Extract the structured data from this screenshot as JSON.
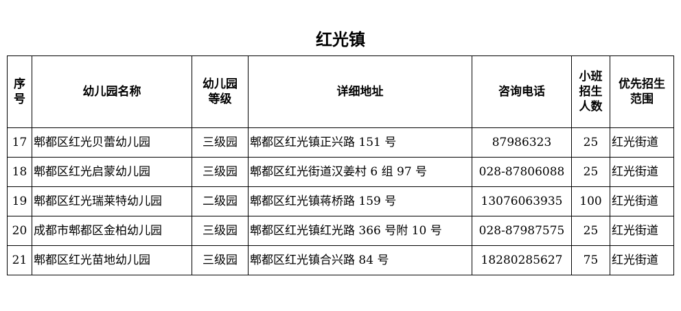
{
  "title": "红光镇",
  "headers": [
    "序\n号",
    "幼儿园名称",
    "幼儿园\n等级",
    "详细地址",
    "咨询电话",
    "小班\n招生\n人数",
    "优先招生\n范围"
  ],
  "rows": [
    [
      "17",
      "郫都区红光贝蕾幼儿园",
      "三级园",
      "郫都区红光镇正兴路 151 号",
      "87986323",
      "25",
      "红光街道"
    ],
    [
      "18",
      "郫都区红光启蒙幼儿园",
      "三级园",
      "郫都区红光街道汉姜村 6 组 97 号",
      "028-87806088",
      "25",
      "红光街道"
    ],
    [
      "19",
      "郫都区红光瑞莱特幼儿园",
      "二级园",
      "郫都区红光镇蒋桥路 159 号",
      "13076063935",
      "100",
      "红光街道"
    ],
    [
      "20",
      "成都市郫都区金柏幼儿园",
      "三级园",
      "郫都区红光镇红光路 366 号附 10 号",
      "028-87987575",
      "25",
      "红光街道"
    ],
    [
      "21",
      "郫都区红光苗地幼儿园",
      "三级园",
      "郫都区红光镇合兴路 84 号",
      "18280285627",
      "75",
      "红光街道"
    ]
  ]
}
